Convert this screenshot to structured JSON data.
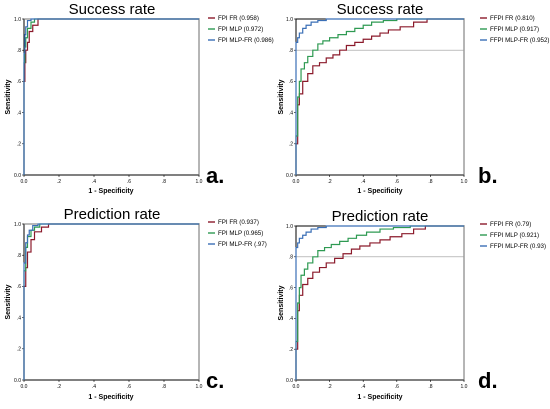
{
  "colors": {
    "fr": "#8b1a2b",
    "mlp": "#2e9a52",
    "mlpfr": "#3a6fb6",
    "axis": "#000000",
    "grid": "#9a9a9a"
  },
  "chart_data": [
    {
      "type": "line",
      "title": "Success rate",
      "panel_letter": "a.",
      "xlabel": "1 - Specificity",
      "ylabel": "Sensitivity",
      "xlim": [
        0,
        1
      ],
      "ylim": [
        0,
        1
      ],
      "x_ticks": [
        "0.0",
        ".2",
        ".4",
        ".6",
        ".8",
        "1.0"
      ],
      "y_ticks": [
        "0.0",
        ".2",
        ".4",
        ".6",
        ".8",
        "1.0"
      ],
      "grid": "x=1.0 and y=1.0 reference lines",
      "legend_position": "top-right",
      "series": [
        {
          "name": "FPI FR (0.958)",
          "color": "#8b1a2b",
          "x": [
            0,
            0,
            0.005,
            0.005,
            0.01,
            0.01,
            0.02,
            0.02,
            0.03,
            0.03,
            0.05,
            0.05,
            0.08,
            0.08,
            1
          ],
          "y": [
            0,
            0.6,
            0.6,
            0.72,
            0.72,
            0.8,
            0.8,
            0.85,
            0.85,
            0.92,
            0.92,
            0.96,
            0.96,
            1,
            1
          ]
        },
        {
          "name": "FPI MLP (0.972)",
          "color": "#2e9a52",
          "x": [
            0,
            0,
            0.005,
            0.005,
            0.01,
            0.01,
            0.02,
            0.02,
            0.04,
            0.04,
            0.06,
            0.06,
            1
          ],
          "y": [
            0,
            0.72,
            0.72,
            0.82,
            0.82,
            0.88,
            0.88,
            0.94,
            0.94,
            0.98,
            0.98,
            1,
            1
          ]
        },
        {
          "name": "FPI MLP-FR (0.986)",
          "color": "#3a6fb6",
          "x": [
            0,
            0,
            0.005,
            0.005,
            0.01,
            0.01,
            0.02,
            0.02,
            0.04,
            0.04,
            1
          ],
          "y": [
            0,
            0.78,
            0.78,
            0.9,
            0.9,
            0.95,
            0.95,
            0.99,
            0.99,
            1,
            1
          ]
        }
      ]
    },
    {
      "type": "line",
      "title": "Success rate",
      "panel_letter": "b.",
      "xlabel": "1 - Specificity",
      "ylabel": "Sensitivity",
      "xlim": [
        0,
        1
      ],
      "ylim": [
        0,
        1
      ],
      "x_ticks": [
        "0.0",
        ".2",
        ".4",
        ".6",
        ".8",
        "1.0"
      ],
      "y_ticks": [
        "0.0",
        ".2",
        ".4",
        ".6",
        ".8",
        "1.0"
      ],
      "grid": "x=1.0 and y=0.8 reference lines",
      "legend_position": "top-right",
      "series": [
        {
          "name": "FFPI FR (0.810)",
          "color": "#8b1a2b",
          "x": [
            0,
            0,
            0.01,
            0.01,
            0.02,
            0.02,
            0.04,
            0.04,
            0.07,
            0.07,
            0.1,
            0.1,
            0.14,
            0.14,
            0.18,
            0.18,
            0.22,
            0.22,
            0.26,
            0.26,
            0.3,
            0.3,
            0.35,
            0.35,
            0.4,
            0.4,
            0.45,
            0.45,
            0.5,
            0.5,
            0.55,
            0.55,
            0.62,
            0.62,
            0.7,
            0.7,
            0.78,
            0.78,
            1
          ],
          "y": [
            0,
            0.2,
            0.2,
            0.45,
            0.45,
            0.52,
            0.52,
            0.6,
            0.6,
            0.65,
            0.65,
            0.7,
            0.7,
            0.72,
            0.72,
            0.75,
            0.75,
            0.77,
            0.77,
            0.8,
            0.8,
            0.83,
            0.83,
            0.85,
            0.85,
            0.87,
            0.87,
            0.89,
            0.89,
            0.91,
            0.91,
            0.93,
            0.93,
            0.95,
            0.95,
            0.98,
            0.98,
            1,
            1
          ]
        },
        {
          "name": "FFPI MLP (0.917)",
          "color": "#2e9a52",
          "x": [
            0,
            0,
            0.01,
            0.01,
            0.02,
            0.02,
            0.03,
            0.03,
            0.05,
            0.05,
            0.07,
            0.07,
            0.1,
            0.1,
            0.13,
            0.13,
            0.16,
            0.16,
            0.2,
            0.2,
            0.25,
            0.25,
            0.3,
            0.3,
            0.35,
            0.35,
            0.4,
            0.4,
            0.45,
            0.45,
            0.52,
            0.52,
            0.6,
            0.6,
            0.7,
            0.7,
            1
          ],
          "y": [
            0,
            0.25,
            0.25,
            0.5,
            0.5,
            0.6,
            0.6,
            0.68,
            0.68,
            0.72,
            0.72,
            0.76,
            0.76,
            0.8,
            0.8,
            0.84,
            0.84,
            0.86,
            0.86,
            0.88,
            0.88,
            0.9,
            0.9,
            0.92,
            0.92,
            0.94,
            0.94,
            0.96,
            0.96,
            0.98,
            0.98,
            0.99,
            0.99,
            1,
            1,
            1,
            1
          ]
        },
        {
          "name": "FFPI MLP-FR (0.952)",
          "color": "#3a6fb6",
          "x": [
            0,
            0,
            0.01,
            0.01,
            0.02,
            0.02,
            0.04,
            0.04,
            0.06,
            0.06,
            0.09,
            0.09,
            0.13,
            0.13,
            0.18,
            0.18,
            0.24,
            0.24,
            1
          ],
          "y": [
            0,
            0.85,
            0.85,
            0.88,
            0.88,
            0.91,
            0.91,
            0.94,
            0.94,
            0.96,
            0.96,
            0.98,
            0.98,
            0.99,
            0.99,
            1,
            1,
            1,
            1
          ]
        }
      ]
    },
    {
      "type": "line",
      "title": "Prediction rate",
      "panel_letter": "c.",
      "xlabel": "1 - Specificity",
      "ylabel": "Sensitivity",
      "xlim": [
        0,
        1
      ],
      "ylim": [
        0,
        1
      ],
      "x_ticks": [
        "0.0",
        ".2",
        ".4",
        ".6",
        ".8",
        "1.0"
      ],
      "y_ticks": [
        "0.0",
        ".2",
        ".4",
        ".6",
        ".8",
        "1.0"
      ],
      "grid": "x=1.0 and y=1.0 reference lines",
      "legend_position": "top-right",
      "series": [
        {
          "name": "FPI FR (0.937)",
          "color": "#8b1a2b",
          "x": [
            0,
            0,
            0.01,
            0.01,
            0.02,
            0.02,
            0.04,
            0.04,
            0.06,
            0.06,
            0.1,
            0.1,
            0.14,
            0.14,
            1
          ],
          "y": [
            0,
            0.6,
            0.6,
            0.72,
            0.72,
            0.82,
            0.82,
            0.9,
            0.9,
            0.95,
            0.95,
            0.98,
            0.98,
            1,
            1
          ]
        },
        {
          "name": "FPI MLP (0.965)",
          "color": "#2e9a52",
          "x": [
            0,
            0,
            0.01,
            0.01,
            0.02,
            0.02,
            0.04,
            0.04,
            0.06,
            0.06,
            0.09,
            0.09,
            1
          ],
          "y": [
            0,
            0.7,
            0.7,
            0.85,
            0.85,
            0.92,
            0.92,
            0.96,
            0.96,
            0.98,
            0.98,
            1,
            1
          ]
        },
        {
          "name": "FPI MLP-FR (.97)",
          "color": "#3a6fb6",
          "x": [
            0,
            0,
            0.01,
            0.01,
            0.02,
            0.02,
            0.03,
            0.03,
            0.05,
            0.05,
            0.08,
            0.08,
            1
          ],
          "y": [
            0,
            0.75,
            0.75,
            0.88,
            0.88,
            0.93,
            0.93,
            0.96,
            0.96,
            0.99,
            0.99,
            1,
            1
          ]
        }
      ]
    },
    {
      "type": "line",
      "title": "Prediction rate",
      "panel_letter": "d.",
      "xlabel": "1 - Specificity",
      "ylabel": "Sensitivity",
      "xlim": [
        0,
        1
      ],
      "ylim": [
        0,
        1
      ],
      "x_ticks": [
        "0.0",
        ".2",
        ".4",
        ".6",
        ".8",
        "1.0"
      ],
      "y_ticks": [
        "0.0",
        ".2",
        ".4",
        ".6",
        ".8",
        "1.0"
      ],
      "grid": "x=1.0 and y=0.8 reference lines",
      "legend_position": "top-right",
      "series": [
        {
          "name": "FFPI FR (0.79)",
          "color": "#8b1a2b",
          "x": [
            0,
            0,
            0.01,
            0.01,
            0.02,
            0.02,
            0.04,
            0.04,
            0.07,
            0.07,
            0.1,
            0.1,
            0.14,
            0.14,
            0.18,
            0.18,
            0.23,
            0.23,
            0.28,
            0.28,
            0.33,
            0.33,
            0.38,
            0.38,
            0.44,
            0.44,
            0.5,
            0.5,
            0.56,
            0.56,
            0.63,
            0.63,
            0.7,
            0.7,
            0.77,
            0.77,
            1
          ],
          "y": [
            0,
            0.2,
            0.2,
            0.45,
            0.45,
            0.55,
            0.55,
            0.62,
            0.62,
            0.66,
            0.66,
            0.7,
            0.7,
            0.73,
            0.73,
            0.76,
            0.76,
            0.79,
            0.79,
            0.82,
            0.82,
            0.85,
            0.85,
            0.87,
            0.87,
            0.89,
            0.89,
            0.91,
            0.91,
            0.93,
            0.93,
            0.95,
            0.95,
            0.98,
            0.98,
            1,
            1
          ]
        },
        {
          "name": "FFPI MLP (0.921)",
          "color": "#2e9a52",
          "x": [
            0,
            0,
            0.01,
            0.01,
            0.02,
            0.02,
            0.03,
            0.03,
            0.05,
            0.05,
            0.07,
            0.07,
            0.1,
            0.1,
            0.13,
            0.13,
            0.17,
            0.17,
            0.21,
            0.21,
            0.26,
            0.26,
            0.31,
            0.31,
            0.36,
            0.36,
            0.42,
            0.42,
            0.5,
            0.5,
            0.58,
            0.58,
            0.68,
            0.68,
            0.78,
            0.78,
            1
          ],
          "y": [
            0,
            0.25,
            0.25,
            0.5,
            0.5,
            0.6,
            0.6,
            0.68,
            0.68,
            0.72,
            0.72,
            0.76,
            0.76,
            0.8,
            0.8,
            0.84,
            0.84,
            0.86,
            0.86,
            0.88,
            0.88,
            0.9,
            0.9,
            0.92,
            0.92,
            0.94,
            0.94,
            0.96,
            0.96,
            0.98,
            0.98,
            0.99,
            0.99,
            1,
            1,
            1,
            1
          ]
        },
        {
          "name": "FFPI MLP-FR (0.93)",
          "color": "#3a6fb6",
          "x": [
            0,
            0,
            0.01,
            0.01,
            0.02,
            0.02,
            0.04,
            0.04,
            0.06,
            0.06,
            0.09,
            0.09,
            0.13,
            0.13,
            0.18,
            0.18,
            0.24,
            0.24,
            1
          ],
          "y": [
            0,
            0.86,
            0.86,
            0.89,
            0.89,
            0.92,
            0.92,
            0.94,
            0.94,
            0.96,
            0.96,
            0.98,
            0.98,
            0.99,
            0.99,
            1,
            1,
            1,
            1
          ]
        }
      ]
    }
  ]
}
